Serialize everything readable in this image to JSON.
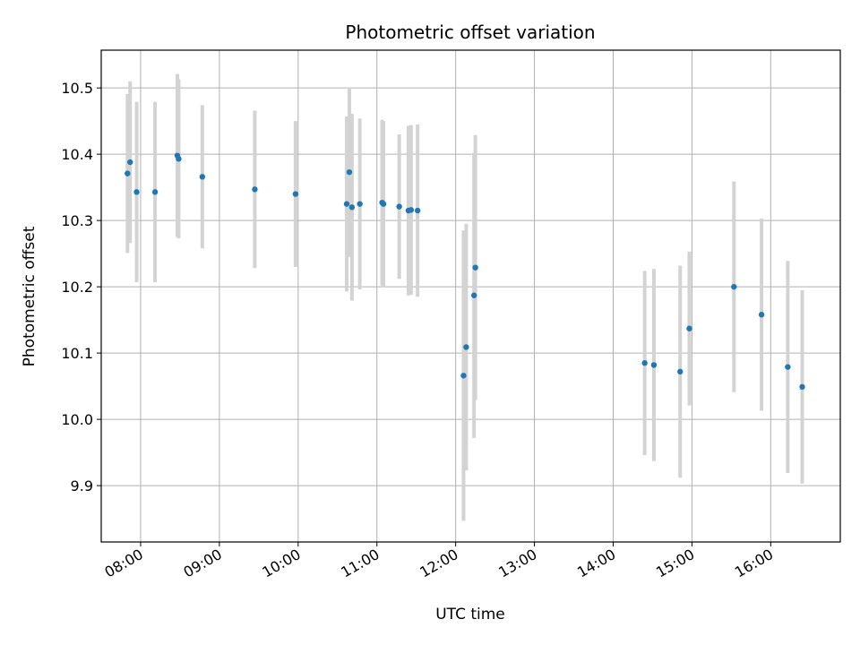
{
  "chart_data": {
    "type": "scatter",
    "title": "Photometric offset variation",
    "xlabel": "UTC time",
    "ylabel": "Photometric offset",
    "x_ticks": [
      "08:00",
      "09:00",
      "10:00",
      "11:00",
      "12:00",
      "13:00",
      "14:00",
      "15:00",
      "16:00"
    ],
    "y_ticks": [
      "9.9",
      "10.0",
      "10.1",
      "10.2",
      "10.3",
      "10.4",
      "10.5"
    ],
    "xlim": [
      "07:30",
      "16:53"
    ],
    "ylim": [
      9.815,
      10.557
    ],
    "grid": true,
    "series": [
      {
        "marker_color": "#1f77b4",
        "errorbar_color": "#d3d3d3",
        "points": [
          {
            "x": "07:50",
            "y": 10.371,
            "yerr": 0.12
          },
          {
            "x": "07:52",
            "y": 10.388,
            "yerr": 0.122
          },
          {
            "x": "07:57",
            "y": 10.343,
            "yerr": 0.136
          },
          {
            "x": "08:11",
            "y": 10.343,
            "yerr": 0.136
          },
          {
            "x": "08:28",
            "y": 10.398,
            "yerr": 0.123
          },
          {
            "x": "08:29",
            "y": 10.393,
            "yerr": 0.12
          },
          {
            "x": "08:47",
            "y": 10.366,
            "yerr": 0.108
          },
          {
            "x": "09:27",
            "y": 10.347,
            "yerr": 0.119
          },
          {
            "x": "09:58",
            "y": 10.34,
            "yerr": 0.11
          },
          {
            "x": "10:37",
            "y": 10.325,
            "yerr": 0.132
          },
          {
            "x": "10:39",
            "y": 10.373,
            "yerr": 0.128
          },
          {
            "x": "10:41",
            "y": 10.32,
            "yerr": 0.141
          },
          {
            "x": "10:47",
            "y": 10.325,
            "yerr": 0.129
          },
          {
            "x": "11:04",
            "y": 10.327,
            "yerr": 0.125
          },
          {
            "x": "11:05",
            "y": 10.325,
            "yerr": 0.125
          },
          {
            "x": "11:17",
            "y": 10.321,
            "yerr": 0.109
          },
          {
            "x": "11:24",
            "y": 10.315,
            "yerr": 0.128
          },
          {
            "x": "11:26",
            "y": 10.316,
            "yerr": 0.128
          },
          {
            "x": "11:31",
            "y": 10.315,
            "yerr": 0.13
          },
          {
            "x": "12:06",
            "y": 10.066,
            "yerr": 0.219
          },
          {
            "x": "12:08",
            "y": 10.109,
            "yerr": 0.186
          },
          {
            "x": "12:14",
            "y": 10.187,
            "yerr": 0.215
          },
          {
            "x": "12:15",
            "y": 10.229,
            "yerr": 0.2
          },
          {
            "x": "14:24",
            "y": 10.085,
            "yerr": 0.139
          },
          {
            "x": "14:31",
            "y": 10.082,
            "yerr": 0.145
          },
          {
            "x": "14:51",
            "y": 10.072,
            "yerr": 0.16
          },
          {
            "x": "14:58",
            "y": 10.137,
            "yerr": 0.116
          },
          {
            "x": "15:32",
            "y": 10.2,
            "yerr": 0.159
          },
          {
            "x": "15:53",
            "y": 10.158,
            "yerr": 0.145
          },
          {
            "x": "16:13",
            "y": 10.079,
            "yerr": 0.16
          },
          {
            "x": "16:24",
            "y": 10.049,
            "yerr": 0.146
          }
        ]
      }
    ]
  }
}
